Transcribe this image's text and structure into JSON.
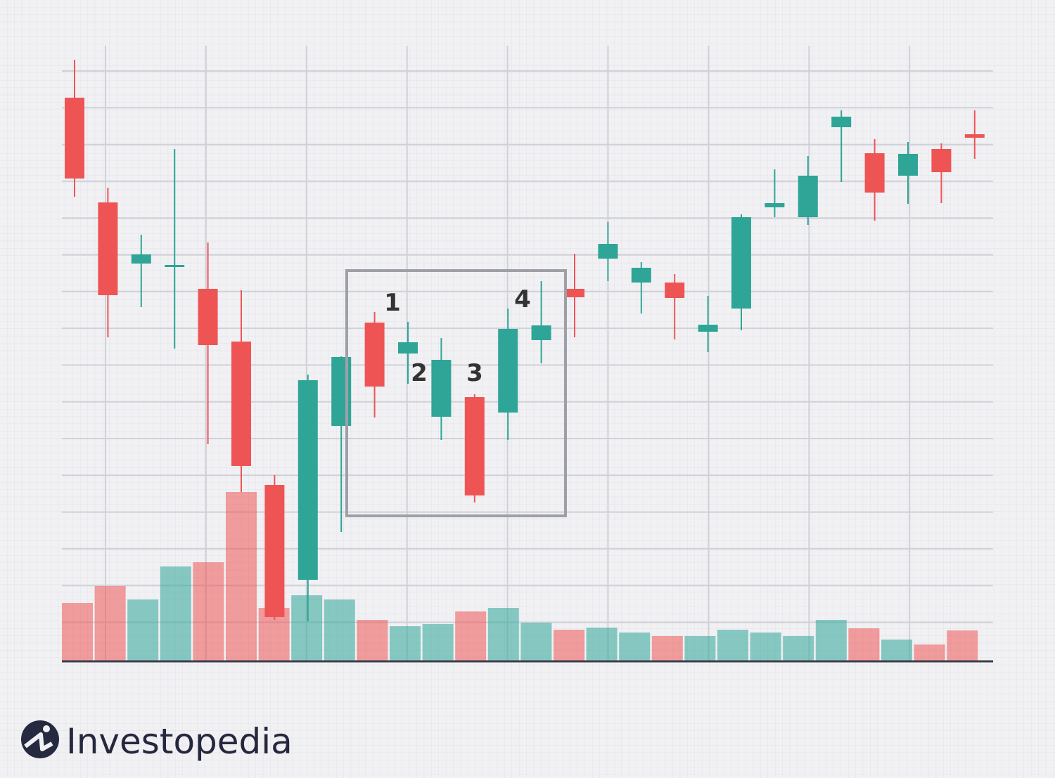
{
  "brand": "Investopedia",
  "chart_data": {
    "type": "candlestick",
    "open": [
      80.1,
      65.2,
      56.5,
      56.0,
      52.9,
      45.4,
      25.0,
      11.5,
      33.4,
      48.1,
      43.7,
      34.7,
      37.5,
      35.3,
      45.6,
      52.9,
      57.2,
      53.8,
      53.8,
      46.8,
      50.1,
      64.5,
      63.1,
      75.9,
      72.2,
      69.0,
      72.8,
      74.9
    ],
    "high": [
      85.5,
      67.3,
      60.6,
      72.8,
      59.5,
      52.7,
      26.4,
      40.7,
      43.3,
      49.6,
      48.2,
      45.9,
      37.9,
      50.1,
      54.0,
      57.9,
      62.4,
      56.7,
      55.0,
      51.9,
      63.5,
      69.9,
      71.8,
      78.3,
      74.2,
      73.8,
      73.6,
      78.3
    ],
    "low": [
      66.0,
      46.0,
      50.3,
      44.4,
      30.8,
      24.0,
      5.8,
      5.6,
      18.3,
      34.6,
      39.4,
      31.4,
      22.5,
      31.4,
      42.3,
      46.0,
      54.0,
      49.4,
      45.7,
      43.9,
      47.0,
      63.1,
      62.0,
      68.1,
      62.6,
      65.0,
      65.1,
      71.4
    ],
    "close": [
      68.6,
      52.0,
      57.8,
      56.3,
      44.9,
      27.7,
      6.2,
      39.9,
      43.2,
      39.0,
      45.3,
      42.8,
      23.5,
      47.2,
      47.7,
      51.7,
      59.3,
      55.9,
      51.6,
      47.8,
      63.1,
      65.1,
      69.0,
      77.4,
      66.6,
      72.1,
      69.5,
      74.4
    ],
    "volume": [
      8.2,
      10.6,
      8.7,
      13.4,
      14.0,
      24.0,
      7.5,
      9.3,
      8.7,
      5.8,
      4.9,
      5.2,
      7.0,
      7.5,
      5.4,
      4.4,
      4.7,
      4.0,
      3.5,
      3.5,
      4.4,
      4.0,
      3.5,
      5.8,
      4.6,
      3.0,
      2.3,
      4.3
    ],
    "up_color": "#2ea597",
    "down_color": "#ef5454",
    "ylim": [
      0,
      86
    ],
    "annotations": [
      "1",
      "2",
      "3",
      "4"
    ]
  }
}
